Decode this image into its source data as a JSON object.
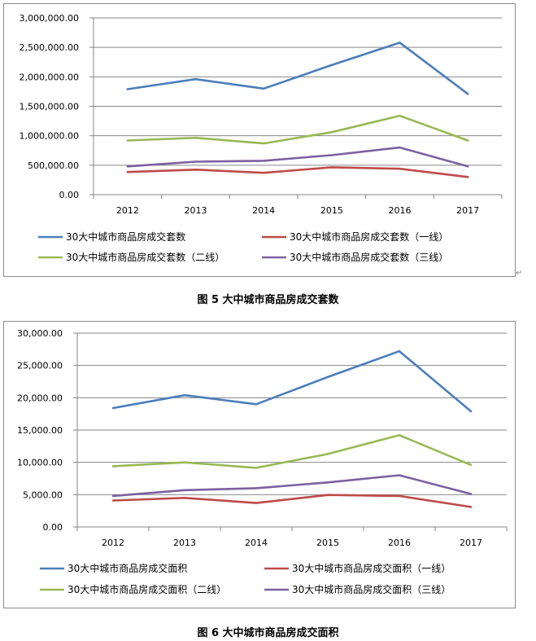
{
  "colors": {
    "series1": "#4a7ebb",
    "series2": "#be4b48",
    "series3": "#98b954",
    "series4": "#7d60a0",
    "grid": "#868686",
    "axis": "#868686"
  },
  "chart_data": [
    {
      "type": "line",
      "caption": "图 5 大中城市商品房成交套数",
      "categories": [
        "2012",
        "2013",
        "2014",
        "2015",
        "2016",
        "2017"
      ],
      "ylim": [
        0,
        3000000
      ],
      "ytick_labels": [
        "0.00",
        "500,000.00",
        "1,000,000.00",
        "1,500,000.00",
        "2,000,000.00",
        "2,500,000.00",
        "3,000,000.00"
      ],
      "ytick_values": [
        0,
        500000,
        1000000,
        1500000,
        2000000,
        2500000,
        3000000
      ],
      "grid": true,
      "legend_position": "bottom",
      "series": [
        {
          "name": "30大中城市商品房成交套数",
          "color_key": "series1",
          "values": [
            1790000,
            1960000,
            1800000,
            2200000,
            2580000,
            1710000
          ]
        },
        {
          "name": "30大中城市商品房成交套数（一线）",
          "color_key": "series2",
          "values": [
            385000,
            425000,
            370000,
            465000,
            440000,
            300000
          ]
        },
        {
          "name": "30大中城市商品房成交套数（二线）",
          "color_key": "series3",
          "values": [
            920000,
            965000,
            870000,
            1060000,
            1340000,
            920000
          ]
        },
        {
          "name": "30大中城市商品房成交套数（三线）",
          "color_key": "series4",
          "values": [
            480000,
            560000,
            575000,
            670000,
            800000,
            480000
          ]
        }
      ]
    },
    {
      "type": "line",
      "caption": "图 6 大中城市商品房成交面积",
      "categories": [
        "2012",
        "2013",
        "2014",
        "2015",
        "2016",
        "2017"
      ],
      "ylim": [
        0,
        30000
      ],
      "ytick_labels": [
        "0.00",
        "5,000.00",
        "10,000.00",
        "15,000.00",
        "20,000.00",
        "25,000.00",
        "30,000.00"
      ],
      "ytick_values": [
        0,
        5000,
        10000,
        15000,
        20000,
        25000,
        30000
      ],
      "grid": true,
      "legend_position": "bottom",
      "series": [
        {
          "name": "30大中城市商品房成交面积",
          "color_key": "series1",
          "values": [
            18400,
            20400,
            19000,
            23200,
            27200,
            17900
          ]
        },
        {
          "name": "30大中城市商品房成交面积（一线）",
          "color_key": "series2",
          "values": [
            4100,
            4500,
            3700,
            4950,
            4800,
            3100
          ]
        },
        {
          "name": "30大中城市商品房成交面积（二线）",
          "color_key": "series3",
          "values": [
            9400,
            10000,
            9150,
            11300,
            14200,
            9600
          ]
        },
        {
          "name": "30大中城市商品房成交面积（三线）",
          "color_key": "series4",
          "values": [
            4800,
            5700,
            6000,
            6900,
            8000,
            5100
          ]
        }
      ]
    }
  ],
  "captions": {
    "fig5": "图 5 大中城市商品房成交套数",
    "fig6": "图 6 大中城市商品房成交面积"
  }
}
